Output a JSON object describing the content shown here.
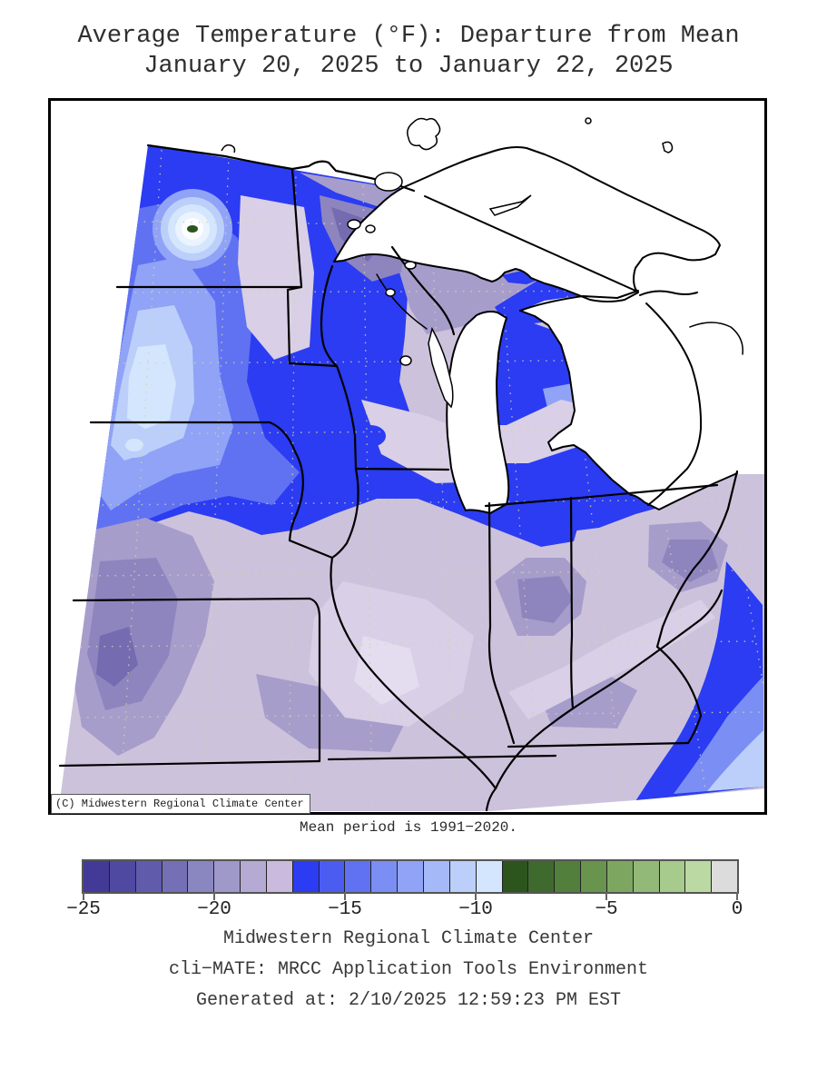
{
  "title": {
    "line1": "Average Temperature (°F): Departure from Mean",
    "line2": "January 20, 2025 to January 22, 2025"
  },
  "map": {
    "copyright": "(C) Midwestern Regional Climate Center",
    "mean_note": "Mean period is 1991−2020.",
    "region": "Midwestern United States and Great Lakes",
    "hotspot_marker_color": "#2c541d"
  },
  "colorbar": {
    "min": -25,
    "max": 0,
    "units": "°F",
    "tick_labels": [
      "−25",
      "−20",
      "−15",
      "−10",
      "−5",
      "0"
    ],
    "cell_colors": [
      "#423a96",
      "#5049a1",
      "#615bab",
      "#7570b5",
      "#8a86c0",
      "#9f99ca",
      "#b5aad4",
      "#c9bade",
      "#2b3cf2",
      "#4b5cf0",
      "#6072f2",
      "#7b8ef4",
      "#90a3f6",
      "#a5b8f8",
      "#bccffa",
      "#d3e6fd",
      "#2c541d",
      "#3f6a2d",
      "#527f3b",
      "#68944d",
      "#7da761",
      "#92b977",
      "#a7ca8d",
      "#bbdaa3",
      "#dcdcdc"
    ]
  },
  "footer": {
    "line1": "Midwestern Regional Climate Center",
    "line2": "cli−MATE: MRCC Application Tools Environment",
    "line3": "Generated at: 2/10/2025 12:59:23 PM EST"
  }
}
